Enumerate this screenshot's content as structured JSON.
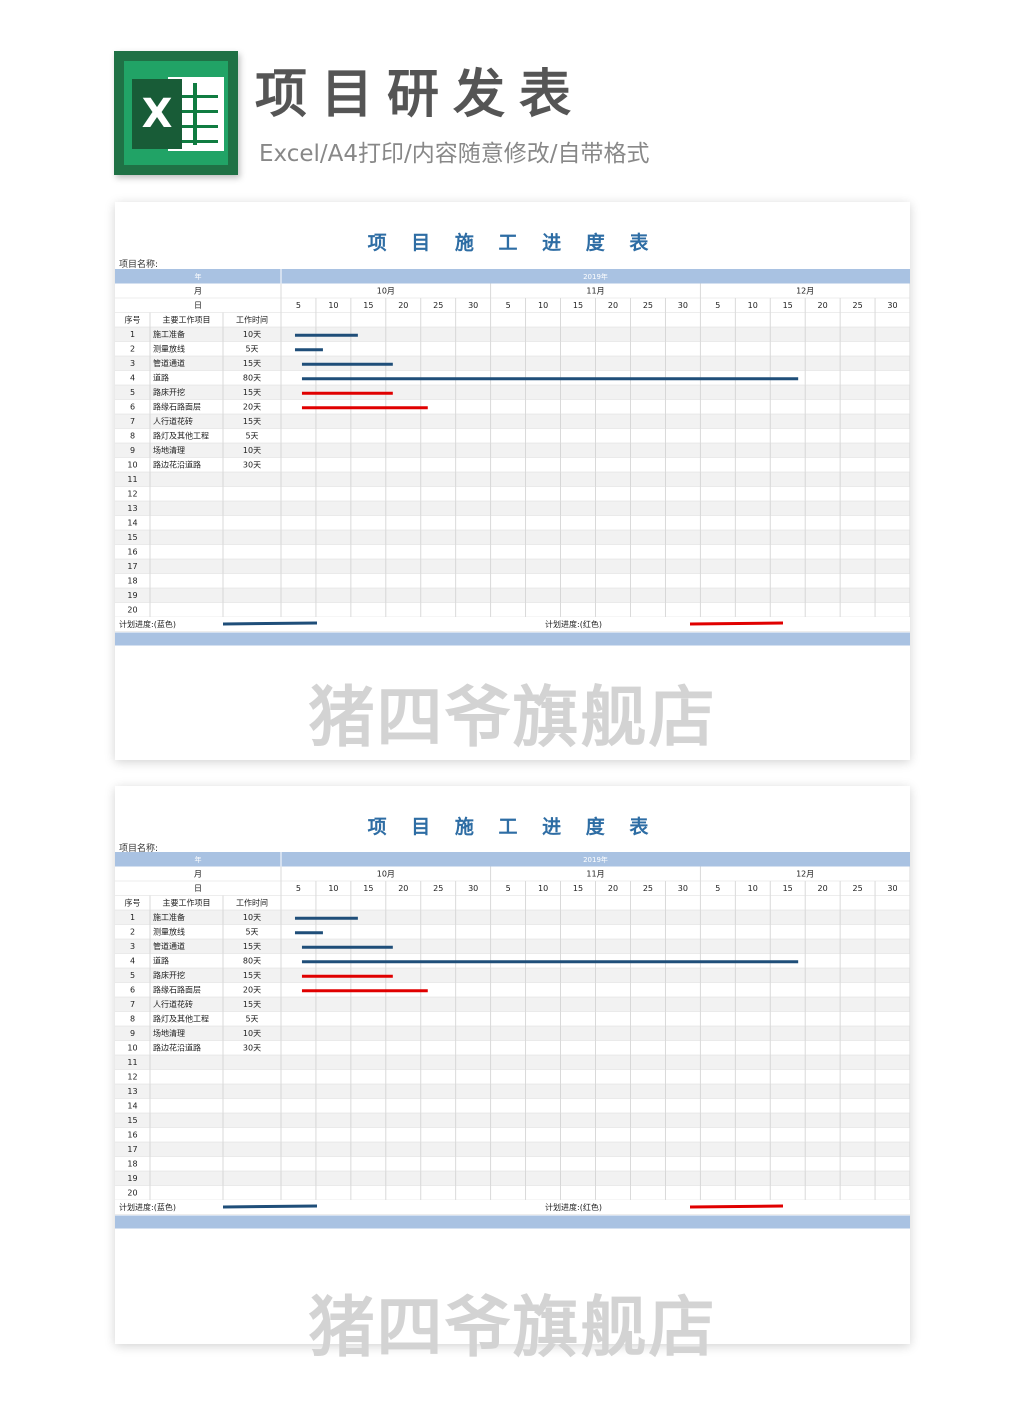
{
  "header": {
    "logo_letter": "X",
    "title": "项目研发表",
    "subtitle": "Excel/A4打印/内容随意修改/自带格式"
  },
  "sheet": {
    "title": "项 目 施 工 进 度 表",
    "project_name_label": "项目名称:",
    "year_label": "年",
    "year_value": "2019年",
    "month_label": "月",
    "day_label": "日",
    "months": [
      "10月",
      "11月",
      "12月"
    ],
    "days": [
      "5",
      "10",
      "15",
      "20",
      "25",
      "30",
      "5",
      "10",
      "15",
      "20",
      "25",
      "30",
      "5",
      "10",
      "15",
      "20",
      "25",
      "30"
    ],
    "columns": {
      "no": "序号",
      "task": "主要工作项目",
      "duration": "工作时间"
    },
    "rows": [
      {
        "no": "1",
        "task": "施工准备",
        "duration": "10天"
      },
      {
        "no": "2",
        "task": "测量放线",
        "duration": "5天"
      },
      {
        "no": "3",
        "task": "管道通道",
        "duration": "15天"
      },
      {
        "no": "4",
        "task": "道路",
        "duration": "80天"
      },
      {
        "no": "5",
        "task": "路床开挖",
        "duration": "15天"
      },
      {
        "no": "6",
        "task": "路缘石路面层",
        "duration": "20天"
      },
      {
        "no": "7",
        "task": "人行道花砖",
        "duration": "15天"
      },
      {
        "no": "8",
        "task": "路灯及其他工程",
        "duration": "5天"
      },
      {
        "no": "9",
        "task": "场地清理",
        "duration": "10天"
      },
      {
        "no": "10",
        "task": "路边花沿道路",
        "duration": "30天"
      },
      {
        "no": "11",
        "task": "",
        "duration": ""
      },
      {
        "no": "12",
        "task": "",
        "duration": ""
      },
      {
        "no": "13",
        "task": "",
        "duration": ""
      },
      {
        "no": "14",
        "task": "",
        "duration": ""
      },
      {
        "no": "15",
        "task": "",
        "duration": ""
      },
      {
        "no": "16",
        "task": "",
        "duration": ""
      },
      {
        "no": "17",
        "task": "",
        "duration": ""
      },
      {
        "no": "18",
        "task": "",
        "duration": ""
      },
      {
        "no": "19",
        "task": "",
        "duration": ""
      },
      {
        "no": "20",
        "task": "",
        "duration": ""
      }
    ],
    "bars": [
      {
        "row": 0,
        "start_day": 2,
        "end_day": 11,
        "color": "#1f4e79"
      },
      {
        "row": 1,
        "start_day": 2,
        "end_day": 6,
        "color": "#1f4e79"
      },
      {
        "row": 2,
        "start_day": 3,
        "end_day": 16,
        "color": "#1f4e79"
      },
      {
        "row": 3,
        "start_day": 3,
        "end_day": 74,
        "color": "#1f4e79"
      },
      {
        "row": 4,
        "start_day": 3,
        "end_day": 16,
        "color": "#e00000"
      },
      {
        "row": 5,
        "start_day": 3,
        "end_day": 21,
        "color": "#e00000"
      }
    ],
    "legend_plan_blue": "计划进度:(蓝色)",
    "legend_plan_red": "计划进度:(红色)",
    "blue_color": "#1f4e79",
    "red_color": "#e00000"
  },
  "watermark": "猪四爷旗舰店"
}
